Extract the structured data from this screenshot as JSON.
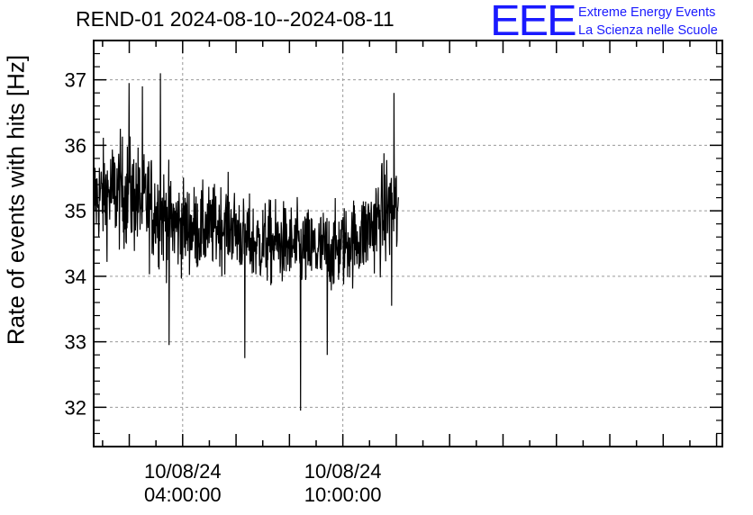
{
  "title": "REND-01 2024-08-10--2024-08-11",
  "logo": {
    "mark": "EEE",
    "line1": "Extreme Energy Events",
    "line2": "La Scienza nelle Scuole",
    "color": "#1a1aff"
  },
  "chart_data": {
    "type": "line",
    "title": "REND-01 2024-08-10--2024-08-11",
    "ylabel": "Rate of events with hits [Hz]",
    "xlabel": "",
    "ylim": [
      31.4,
      37.6
    ],
    "xlim": [
      "2024-08-10 00:40",
      "2024-08-11 00:13"
    ],
    "yticks": [
      32,
      33,
      34,
      35,
      36,
      37
    ],
    "xticks": [
      {
        "value": "2024-08-10 04:00",
        "label_date": "10/08/24",
        "label_time": "04:00:00"
      },
      {
        "value": "2024-08-10 10:00",
        "label_date": "10/08/24",
        "label_time": "10:00:00"
      }
    ],
    "grid": true,
    "series": [
      {
        "color": "#000000",
        "time_range": [
          "2024-08-10 00:40",
          "2024-08-10 12:05"
        ],
        "envelope": [
          {
            "time": "2024-08-10 00:40",
            "mean": 35.2,
            "spread": 0.7
          },
          {
            "time": "2024-08-10 01:40",
            "mean": 35.3,
            "spread": 0.8
          },
          {
            "time": "2024-08-10 02:40",
            "mean": 35.1,
            "spread": 0.8
          },
          {
            "time": "2024-08-10 03:40",
            "mean": 34.8,
            "spread": 0.7
          },
          {
            "time": "2024-08-10 04:40",
            "mean": 34.7,
            "spread": 0.6
          },
          {
            "time": "2024-08-10 05:40",
            "mean": 34.8,
            "spread": 0.6
          },
          {
            "time": "2024-08-10 06:40",
            "mean": 34.5,
            "spread": 0.6
          },
          {
            "time": "2024-08-10 07:40",
            "mean": 34.5,
            "spread": 0.6
          },
          {
            "time": "2024-08-10 08:40",
            "mean": 34.4,
            "spread": 0.6
          },
          {
            "time": "2024-08-10 09:40",
            "mean": 34.4,
            "spread": 0.6
          },
          {
            "time": "2024-08-10 10:40",
            "mean": 34.6,
            "spread": 0.6
          },
          {
            "time": "2024-08-10 11:40",
            "mean": 35.0,
            "spread": 0.8
          }
        ],
        "max": {
          "time": "2024-08-10 03:10",
          "value": 37.1
        },
        "min": {
          "time": "2024-08-10 08:25",
          "value": 31.95
        },
        "noted_spikes": [
          {
            "time": "2024-08-10 00:40",
            "value": 36.25
          },
          {
            "time": "2024-08-10 02:00",
            "value": 36.95
          },
          {
            "time": "2024-08-10 02:30",
            "value": 36.9
          },
          {
            "time": "2024-08-10 03:10",
            "value": 37.1
          },
          {
            "time": "2024-08-10 03:30",
            "value": 32.95
          },
          {
            "time": "2024-08-10 06:20",
            "value": 32.75
          },
          {
            "time": "2024-08-10 08:25",
            "value": 31.95
          },
          {
            "time": "2024-08-10 09:25",
            "value": 32.8
          },
          {
            "time": "2024-08-10 11:55",
            "value": 36.8
          },
          {
            "time": "2024-08-10 11:50",
            "value": 33.55
          }
        ]
      }
    ]
  }
}
